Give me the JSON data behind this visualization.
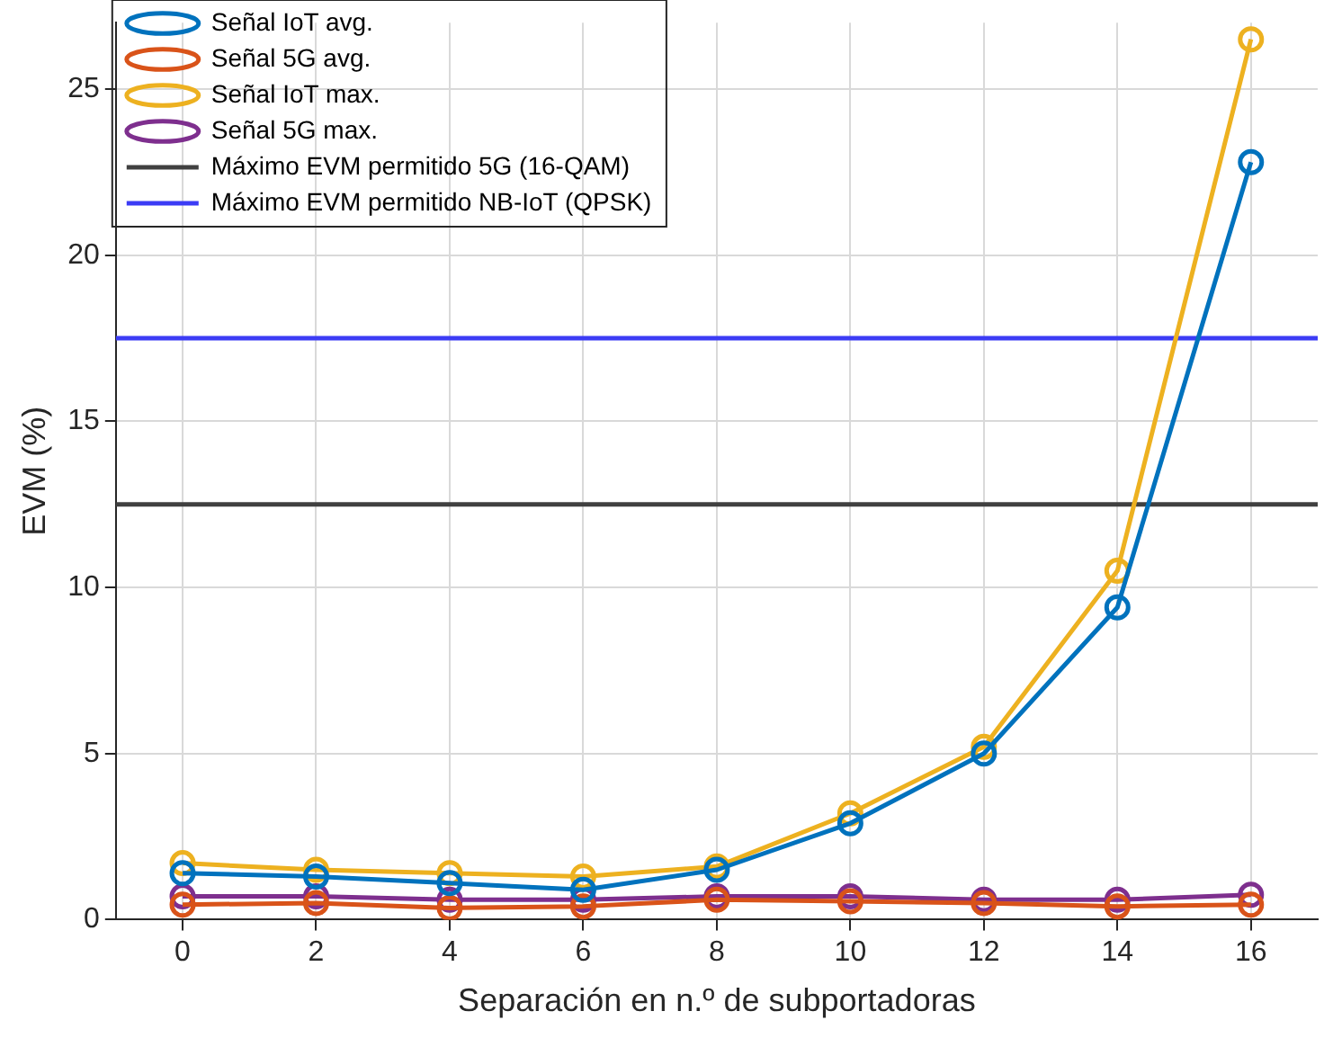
{
  "chart_data": {
    "type": "line",
    "xlabel": "Separación en n.º de subportadoras",
    "ylabel": "EVM (%)",
    "x": [
      0,
      2,
      4,
      6,
      8,
      10,
      12,
      14,
      16
    ],
    "xlim": [
      -1,
      17
    ],
    "xticks": [
      0,
      2,
      4,
      6,
      8,
      10,
      12,
      14,
      16
    ],
    "ylim": [
      0,
      27
    ],
    "yticks": [
      0,
      5,
      10,
      15,
      20,
      25
    ],
    "series": [
      {
        "name": "Señal IoT avg.",
        "color": "#0072bd",
        "values": [
          1.4,
          1.3,
          1.1,
          0.9,
          1.5,
          2.9,
          5.0,
          9.4,
          22.8
        ]
      },
      {
        "name": "Señal 5G avg.",
        "color": "#d95319",
        "values": [
          0.45,
          0.5,
          0.35,
          0.4,
          0.6,
          0.55,
          0.5,
          0.4,
          0.45
        ]
      },
      {
        "name": "Señal IoT max.",
        "color": "#edb120",
        "values": [
          1.7,
          1.5,
          1.4,
          1.3,
          1.6,
          3.2,
          5.2,
          10.5,
          26.5
        ]
      },
      {
        "name": "Señal 5G max.",
        "color": "#7e2f8e",
        "values": [
          0.7,
          0.7,
          0.6,
          0.6,
          0.7,
          0.7,
          0.6,
          0.6,
          0.75
        ]
      }
    ],
    "ref_lines": [
      {
        "axis": "y",
        "value": 12.5,
        "label": "Máximo EVM permitido 5G (16-QAM)",
        "color": "#404040"
      },
      {
        "axis": "y",
        "value": 17.5,
        "label": "Máximo EVM permitido NB-IoT (QPSK)",
        "color": "#3c3cf5"
      }
    ],
    "grid": true,
    "legend": "top left",
    "marker": "circle",
    "line_style": "solid"
  }
}
